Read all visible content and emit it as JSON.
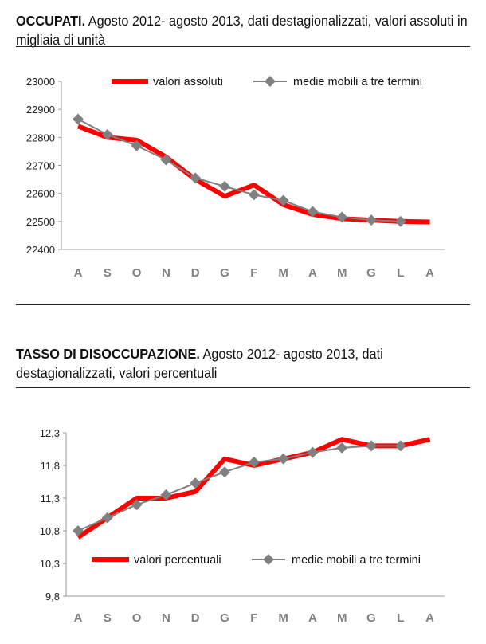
{
  "chart_data": [
    {
      "type": "line",
      "title_bold": "OCCUPATI.",
      "title": " Agosto 2012- agosto 2013, dati destagionalizzati, valori assoluti in migliaia di unità",
      "categories": [
        "A",
        "S",
        "O",
        "N",
        "D",
        "G",
        "F",
        "M",
        "A",
        "M",
        "G",
        "L",
        "A"
      ],
      "ylim": [
        22400,
        23000
      ],
      "yticks": [
        "22400",
        "22500",
        "22600",
        "22700",
        "22800",
        "22900",
        "23000"
      ],
      "ytick_values": [
        22400,
        22500,
        22600,
        22700,
        22800,
        22900,
        23000
      ],
      "legend_placement": "top",
      "series": [
        {
          "name": "valori assoluti",
          "color": "#ff0000",
          "values": [
            22840,
            22800,
            22790,
            22730,
            22650,
            22590,
            22630,
            22560,
            22525,
            22510,
            22505,
            22500,
            22498
          ]
        },
        {
          "name": "medie mobili a tre termini",
          "color": "#808080",
          "marker": "diamond",
          "values": [
            22865,
            22810,
            22770,
            22720,
            22655,
            22625,
            22595,
            22575,
            22535,
            22515,
            22505,
            22500,
            null
          ]
        }
      ]
    },
    {
      "type": "line",
      "title_bold": "TASSO DI DISOCCUPAZIONE.",
      "title": " Agosto 2012- agosto 2013, dati destagionalizzati, valori percentuali",
      "categories": [
        "A",
        "S",
        "O",
        "N",
        "D",
        "G",
        "F",
        "M",
        "A",
        "M",
        "G",
        "L",
        "A"
      ],
      "ylim": [
        9.8,
        12.3
      ],
      "yticks": [
        "9,8",
        "10,3",
        "10,8",
        "11,3",
        "11,8",
        "12,3"
      ],
      "ytick_values": [
        9.8,
        10.3,
        10.8,
        11.3,
        11.8,
        12.3
      ],
      "legend_placement": "bottom",
      "series": [
        {
          "name": "valori percentuali",
          "color": "#ff0000",
          "values": [
            10.7,
            11.0,
            11.3,
            11.3,
            11.4,
            11.9,
            11.8,
            11.9,
            12.0,
            12.2,
            12.1,
            12.1,
            12.2
          ]
        },
        {
          "name": "medie mobili a tre termini",
          "color": "#808080",
          "marker": "diamond",
          "values": [
            10.8,
            11.0,
            11.2,
            11.35,
            11.53,
            11.7,
            11.85,
            11.9,
            12.0,
            12.07,
            12.1,
            12.1,
            null
          ]
        }
      ]
    }
  ]
}
